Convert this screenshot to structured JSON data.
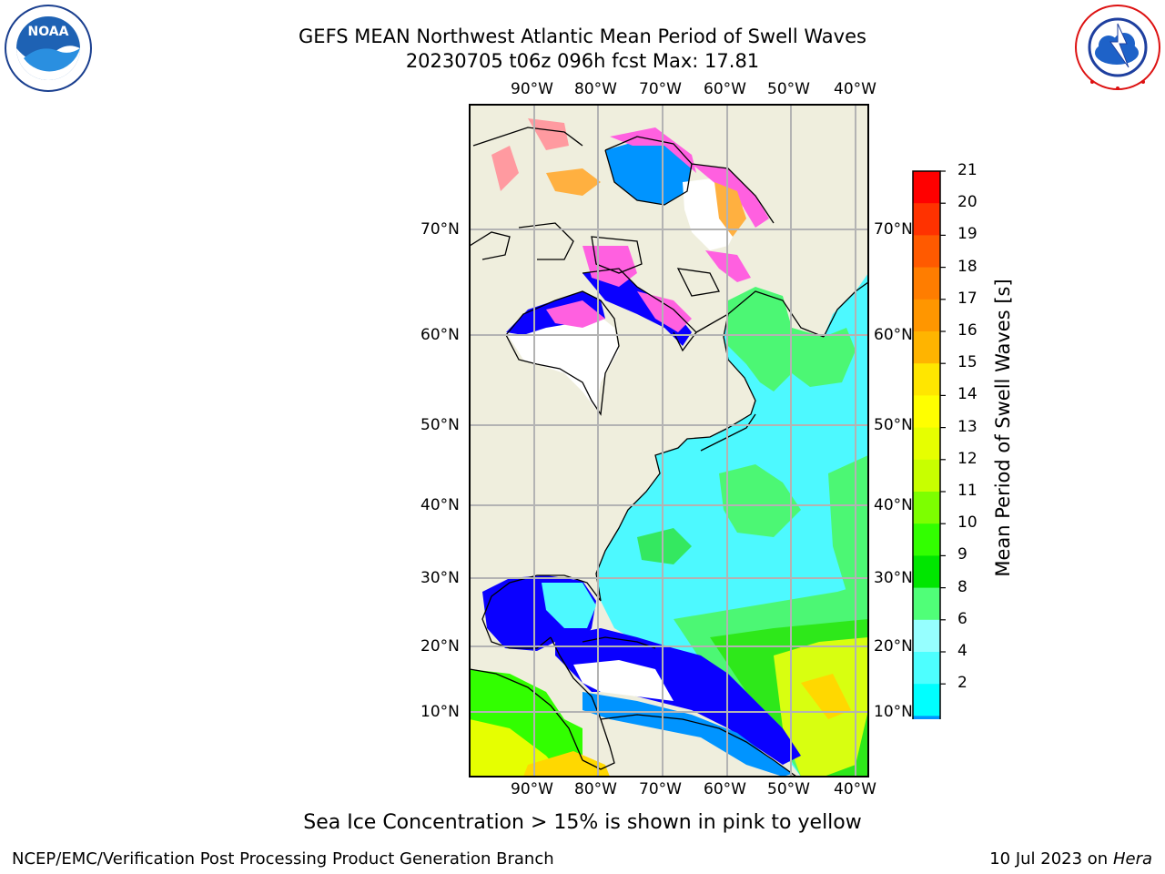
{
  "header": {
    "title_line1": "GEFS MEAN Northwest Atlantic Mean Period of Swell Waves",
    "title_line2": "20230705 t06z 096h fcst   Max: 17.81"
  },
  "logos": {
    "left": {
      "name": "NOAA",
      "ring_text": "NATIONAL OCEANIC AND ATMOSPHERIC ADMINISTRATION · U.S. DEPARTMENT OF COMMERCE"
    },
    "right": {
      "ring_text": "NATIONAL WEATHER SERVICE"
    }
  },
  "map": {
    "lon_ticks": [
      "90°W",
      "80°W",
      "70°W",
      "60°W",
      "50°W",
      "40°W"
    ],
    "lat_ticks": [
      "70°N",
      "60°N",
      "50°N",
      "40°N",
      "30°N",
      "20°N",
      "10°N"
    ],
    "colors": {
      "land": "#efeedd",
      "ocean_default": "#4df9ff",
      "coast": "#000000",
      "grid": "#b3b3b3"
    }
  },
  "colorbar": {
    "label": "Mean Period of Swell Waves [s]",
    "ticks": [
      "21",
      "20",
      "19",
      "18",
      "17",
      "16",
      "15",
      "14",
      "13",
      "12",
      "11",
      "10",
      "9",
      "8",
      "6",
      "4",
      "2"
    ],
    "colors": [
      "#ff0000",
      "#ff3200",
      "#ff5a00",
      "#ff7d00",
      "#ff9600",
      "#ffb400",
      "#ffe600",
      "#ffff00",
      "#e6ff00",
      "#c8ff00",
      "#7dff00",
      "#32ff00",
      "#00e600",
      "#50ff78",
      "#96ffff",
      "#4dffff",
      "#00ffff",
      "#0094ff",
      "#0a00ff"
    ]
  },
  "footer": {
    "caption": "Sea Ice Concentration > 15% is shown in pink to yellow",
    "credit": "NCEP/EMC/Verification Post Processing Product Generation Branch",
    "date_prefix": "10 Jul 2023 on ",
    "machine": "Hera"
  }
}
